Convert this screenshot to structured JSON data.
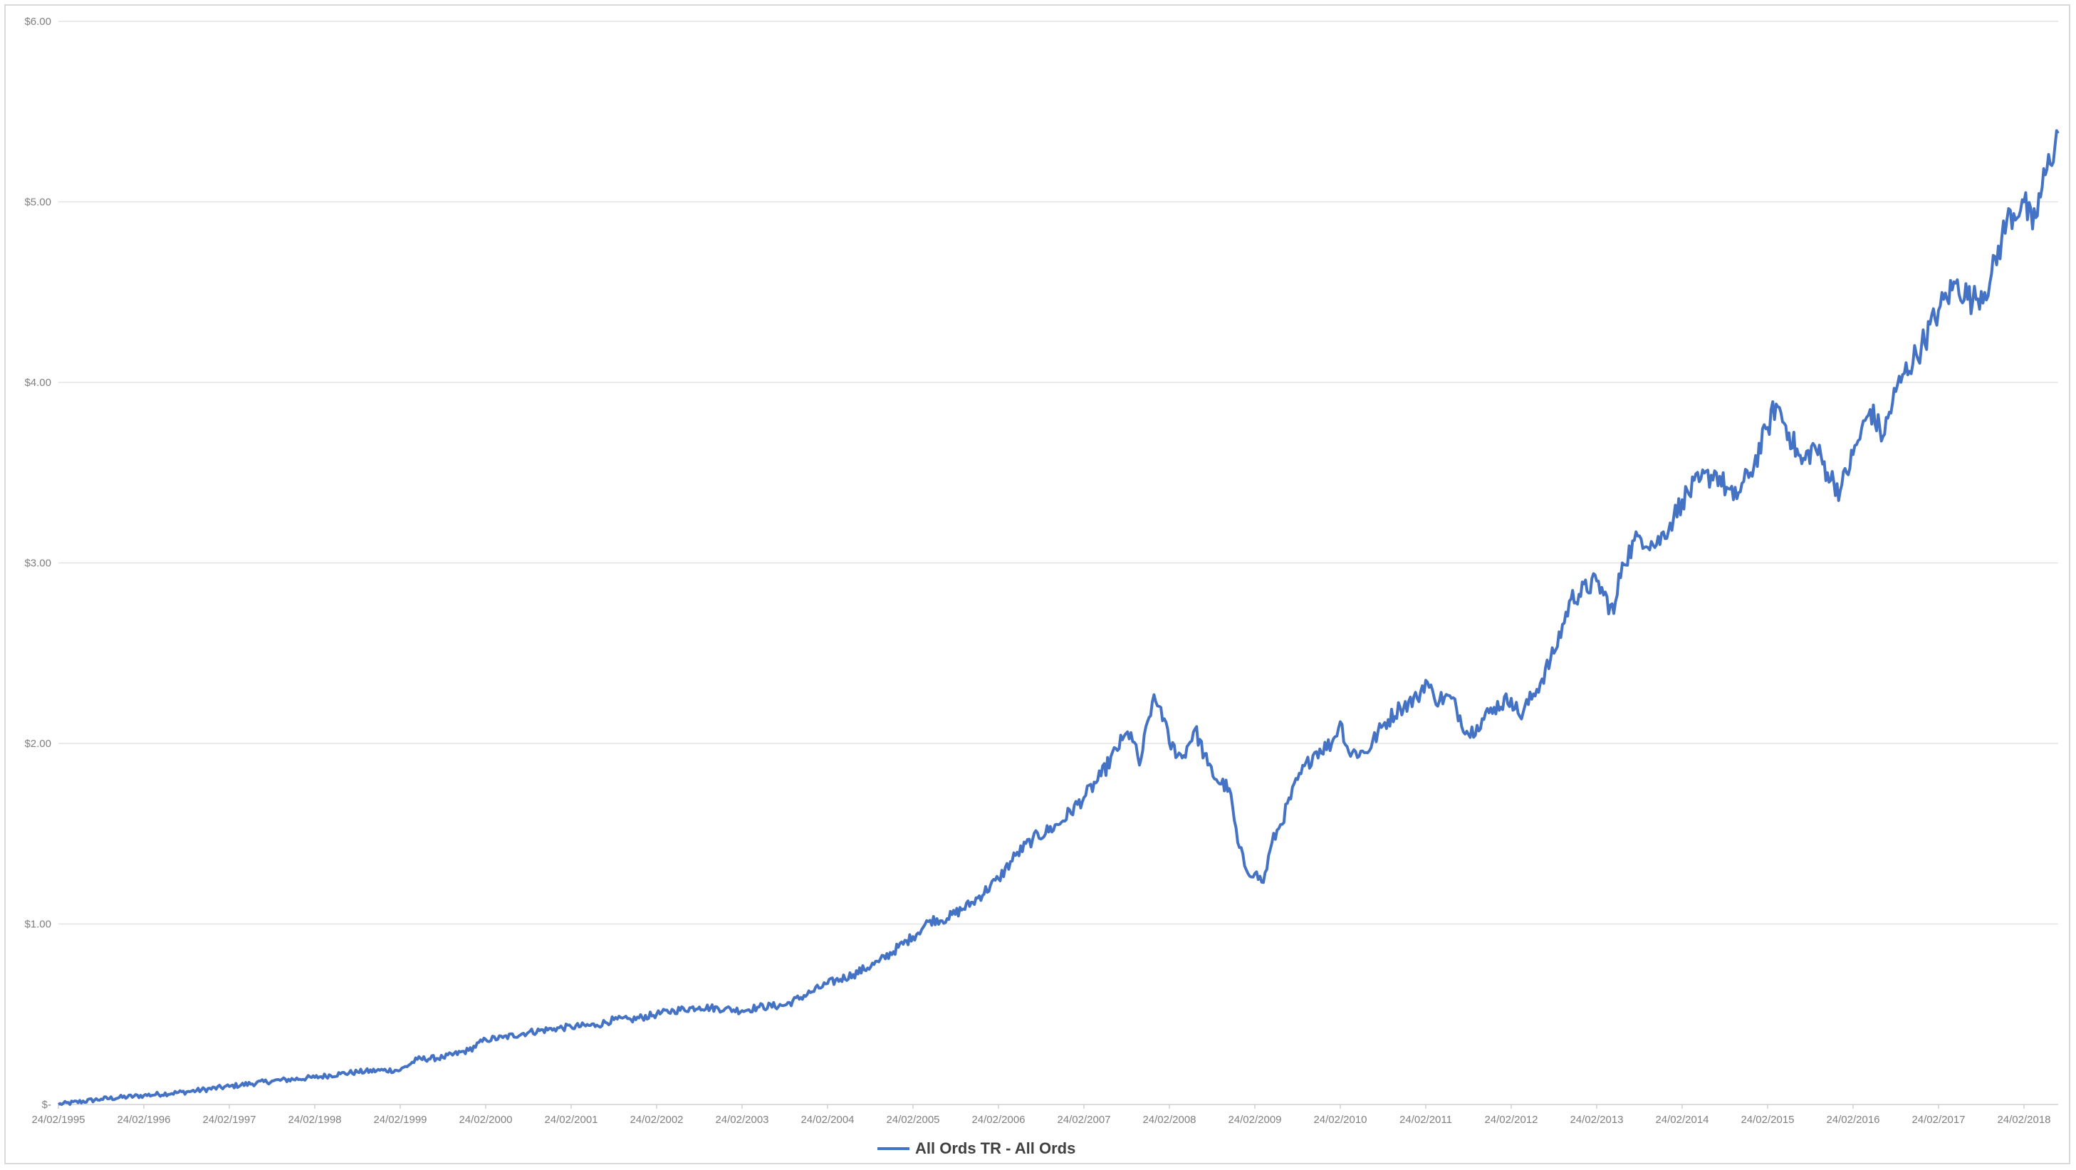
{
  "chart_data": {
    "type": "line",
    "title": "",
    "xlabel": "",
    "ylabel": "",
    "x_tick_labels": [
      "24/02/1995",
      "24/02/1996",
      "24/02/1997",
      "24/02/1998",
      "24/02/1999",
      "24/02/2000",
      "24/02/2001",
      "24/02/2002",
      "24/02/2003",
      "24/02/2004",
      "24/02/2005",
      "24/02/2006",
      "24/02/2007",
      "24/02/2008",
      "24/02/2009",
      "24/02/2010",
      "24/02/2011",
      "24/02/2012",
      "24/02/2013",
      "24/02/2014",
      "24/02/2015",
      "24/02/2016",
      "24/02/2017",
      "24/02/2018"
    ],
    "y_tick_labels": [
      "$-",
      "$1.00",
      "$2.00",
      "$3.00",
      "$4.00",
      "$5.00",
      "$6.00"
    ],
    "ylim": [
      0,
      6
    ],
    "xlim": [
      1995.0,
      2018.4
    ],
    "grid": "horizontal",
    "legend_position": "bottom",
    "line_color": "#4472C4",
    "series": [
      {
        "name": "All Ords TR - All Ords",
        "x": [
          1995.0,
          1995.5,
          1996.0,
          1996.5,
          1997.0,
          1997.5,
          1998.0,
          1998.3,
          1998.5,
          1998.8,
          1999.0,
          1999.2,
          1999.5,
          1999.8,
          2000.0,
          2000.2,
          2000.5,
          2000.8,
          2001.0,
          2001.3,
          2001.5,
          2001.7,
          2002.0,
          2002.2,
          2002.5,
          2002.8,
          2003.0,
          2003.2,
          2003.5,
          2003.8,
          2004.0,
          2004.3,
          2004.6,
          2005.0,
          2005.2,
          2005.4,
          2005.7,
          2006.0,
          2006.2,
          2006.4,
          2006.7,
          2007.0,
          2007.2,
          2007.45,
          2007.55,
          2007.65,
          2007.8,
          2007.9,
          2008.0,
          2008.15,
          2008.3,
          2008.45,
          2008.55,
          2008.7,
          2008.8,
          2008.9,
          2009.0,
          2009.1,
          2009.2,
          2009.3,
          2009.5,
          2009.7,
          2009.9,
          2010.0,
          2010.1,
          2010.3,
          2010.5,
          2010.7,
          2010.9,
          2011.0,
          2011.1,
          2011.3,
          2011.5,
          2011.6,
          2011.8,
          2012.0,
          2012.1,
          2012.3,
          2012.5,
          2012.7,
          2013.0,
          2013.2,
          2013.3,
          2013.5,
          2013.7,
          2013.9,
          2014.0,
          2014.2,
          2014.4,
          2014.6,
          2014.8,
          2015.0,
          2015.1,
          2015.25,
          2015.4,
          2015.55,
          2015.7,
          2015.85,
          2016.0,
          2016.2,
          2016.35,
          2016.5,
          2016.6,
          2016.8,
          2017.0,
          2017.2,
          2017.4,
          2017.6,
          2017.8,
          2018.0,
          2018.1,
          2018.25,
          2018.4
        ],
        "values": [
          0.0,
          0.03,
          0.05,
          0.07,
          0.1,
          0.13,
          0.15,
          0.17,
          0.18,
          0.19,
          0.19,
          0.25,
          0.26,
          0.3,
          0.36,
          0.37,
          0.4,
          0.42,
          0.43,
          0.44,
          0.47,
          0.47,
          0.5,
          0.52,
          0.54,
          0.53,
          0.52,
          0.54,
          0.55,
          0.62,
          0.67,
          0.72,
          0.79,
          0.93,
          1.02,
          1.03,
          1.12,
          1.25,
          1.38,
          1.47,
          1.55,
          1.7,
          1.82,
          2.02,
          2.06,
          1.88,
          2.23,
          2.2,
          2.0,
          1.92,
          2.08,
          1.88,
          1.8,
          1.75,
          1.45,
          1.3,
          1.28,
          1.23,
          1.45,
          1.55,
          1.8,
          1.95,
          2.0,
          2.12,
          1.95,
          1.95,
          2.1,
          2.2,
          2.25,
          2.35,
          2.25,
          2.25,
          2.05,
          2.1,
          2.2,
          2.25,
          2.15,
          2.3,
          2.5,
          2.8,
          2.9,
          2.72,
          3.0,
          3.15,
          3.1,
          3.25,
          3.35,
          3.45,
          3.5,
          3.35,
          3.5,
          3.75,
          3.88,
          3.72,
          3.55,
          3.65,
          3.5,
          3.4,
          3.6,
          3.85,
          3.7,
          3.95,
          4.05,
          4.2,
          4.4,
          4.55,
          4.45,
          4.55,
          4.9,
          5.0,
          4.85,
          5.15,
          5.38
        ]
      }
    ]
  }
}
